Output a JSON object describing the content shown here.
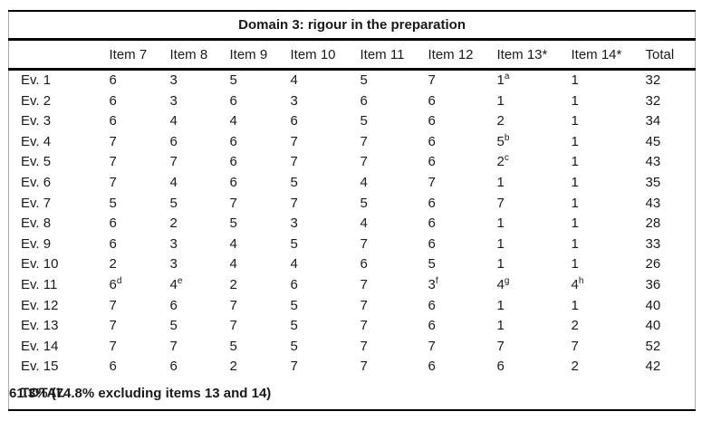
{
  "table": {
    "title": "Domain 3: rigour in the preparation",
    "columns": [
      "",
      "Item 7",
      "Item 8",
      "Item 9",
      "Item 10",
      "Item 11",
      "Item 12",
      "Item 13*",
      "Item 14*",
      "Total"
    ],
    "rows": [
      {
        "label": "Ev. 1",
        "values": [
          "6",
          "3",
          "5",
          "4",
          "5",
          "7",
          "1^a",
          "1",
          "32"
        ]
      },
      {
        "label": "Ev. 2",
        "values": [
          "6",
          "3",
          "6",
          "3",
          "6",
          "6",
          "1",
          "1",
          "32"
        ]
      },
      {
        "label": "Ev. 3",
        "values": [
          "6",
          "4",
          "4",
          "6",
          "5",
          "6",
          "2",
          "1",
          "34"
        ]
      },
      {
        "label": "Ev. 4",
        "values": [
          "7",
          "6",
          "6",
          "7",
          "7",
          "6",
          "5^b",
          "1",
          "45"
        ]
      },
      {
        "label": "Ev. 5",
        "values": [
          "7",
          "7",
          "6",
          "7",
          "7",
          "6",
          "2^c",
          "1",
          "43"
        ]
      },
      {
        "label": "Ev. 6",
        "values": [
          "7",
          "4",
          "6",
          "5",
          "4",
          "7",
          "1",
          "1",
          "35"
        ]
      },
      {
        "label": "Ev. 7",
        "values": [
          "5",
          "5",
          "7",
          "7",
          "5",
          "6",
          "7",
          "1",
          "43"
        ]
      },
      {
        "label": "Ev. 8",
        "values": [
          "6",
          "2",
          "5",
          "3",
          "4",
          "6",
          "1",
          "1",
          "28"
        ]
      },
      {
        "label": "Ev. 9",
        "values": [
          "6",
          "3",
          "4",
          "5",
          "7",
          "6",
          "1",
          "1",
          "33"
        ]
      },
      {
        "label": "Ev. 10",
        "values": [
          "2",
          "3",
          "4",
          "4",
          "6",
          "5",
          "1",
          "1",
          "26"
        ]
      },
      {
        "label": "Ev. 11",
        "values": [
          "6^d",
          "4^e",
          "2",
          "6",
          "7",
          "3^f",
          "4^g",
          "4^h",
          "36"
        ]
      },
      {
        "label": "Ev. 12",
        "values": [
          "7",
          "6",
          "7",
          "5",
          "7",
          "6",
          "1",
          "1",
          "40"
        ]
      },
      {
        "label": "Ev. 13",
        "values": [
          "7",
          "5",
          "7",
          "5",
          "7",
          "6",
          "1",
          "2",
          "40"
        ]
      },
      {
        "label": "Ev. 14",
        "values": [
          "7",
          "7",
          "5",
          "5",
          "7",
          "7",
          "7",
          "7",
          "52"
        ]
      },
      {
        "label": "Ev. 15",
        "values": [
          "6",
          "6",
          "2",
          "7",
          "7",
          "6",
          "6",
          "2",
          "42"
        ]
      }
    ],
    "total_row": {
      "label": "TOTAL",
      "value": "61.3% (74.8% excluding items 13 and 14)"
    },
    "colors": {
      "text": "#1a1a1a",
      "rule": "#000000",
      "frame": "#ababab",
      "background": "#ffffff"
    }
  }
}
